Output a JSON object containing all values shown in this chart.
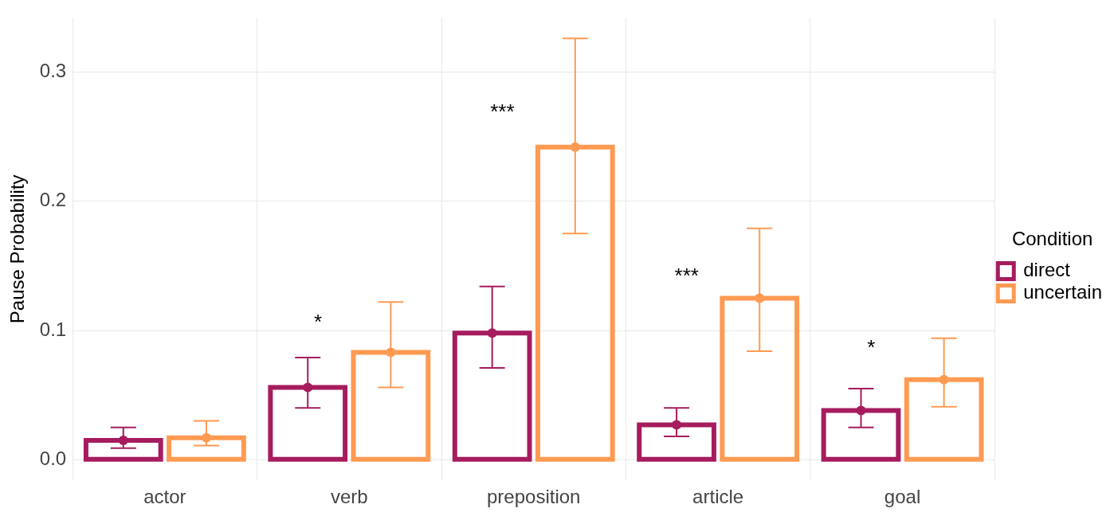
{
  "chart_data": {
    "type": "bar",
    "ylabel": "Pause Probability",
    "legend_title": "Condition",
    "categories": [
      "actor",
      "verb",
      "preposition",
      "article",
      "goal"
    ],
    "series": [
      {
        "name": "direct",
        "color": "#a61c5e",
        "values": [
          0.015,
          0.056,
          0.098,
          0.027,
          0.038
        ]
      },
      {
        "name": "uncertain",
        "color": "#ff9a52",
        "values": [
          0.017,
          0.083,
          0.242,
          0.125,
          0.062
        ]
      },
      {
        "type": "scatter",
        "color": "#a61c5e",
        "x": [
          "actor",
          "verb",
          "preposition",
          "article",
          "goal"
        ],
        "values": [
          0.015,
          0.056,
          0.098,
          0.027,
          0.038
        ],
        "errors": [
          [
            0.009,
            0.025
          ],
          [
            0.04,
            0.079
          ],
          [
            0.071,
            0.134
          ],
          [
            0.018,
            0.04
          ],
          [
            0.025,
            0.055
          ]
        ]
      },
      {
        "type": "scatter",
        "color": "#ff9a52",
        "x": [
          "actor",
          "verb",
          "preposition",
          "article",
          "goal"
        ],
        "values": [
          0.017,
          0.083,
          0.242,
          0.125,
          0.062
        ],
        "errors": [
          [
            0.011,
            0.03
          ],
          [
            0.056,
            0.122
          ],
          [
            0.175,
            0.326
          ],
          [
            0.084,
            0.179
          ],
          [
            0.041,
            0.094
          ]
        ]
      }
    ],
    "ylim": [
      -0.016,
      0.342
    ],
    "yticks": [
      {
        "value": 0,
        "label": "0.0"
      },
      0.1,
      0.2,
      0.3
    ],
    "grid": true,
    "legend": "right",
    "marker": "circle",
    "annotations": [
      "*",
      "***",
      "***",
      "*"
    ]
  }
}
